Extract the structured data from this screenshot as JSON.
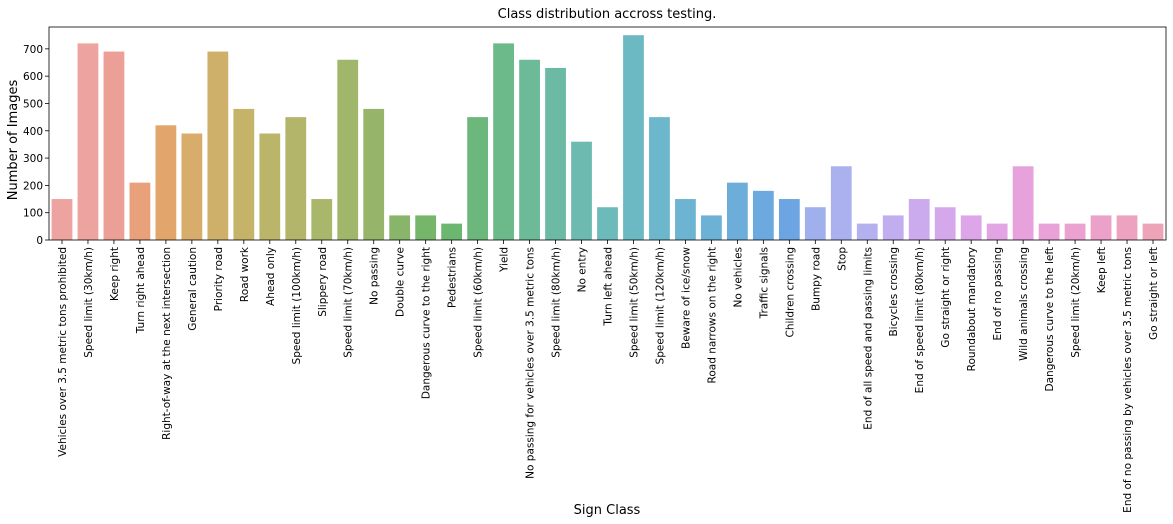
{
  "chart_data": {
    "type": "bar",
    "title": "Class distribution accross testing.",
    "xlabel": "Sign Class",
    "ylabel": "Number of Images",
    "ylim": [
      0,
      780
    ],
    "yticks": [
      0,
      100,
      200,
      300,
      400,
      500,
      600,
      700
    ],
    "grid": false,
    "categories": [
      "Vehicles over 3.5 metric tons prohibited",
      "Speed limit (30km/h)",
      "Keep right",
      "Turn right ahead",
      "Right-of-way at the next intersection",
      "General caution",
      "Priority road",
      "Road work",
      "Ahead only",
      "Speed limit (100km/h)",
      "Slippery road",
      "Speed limit (70km/h)",
      "No passing",
      "Double curve",
      "Dangerous curve to the right",
      "Pedestrians",
      "Speed limit (60km/h)",
      "Yield",
      "No passing for vehicles over 3.5 metric tons",
      "Speed limit (80km/h)",
      "No entry",
      "Turn left ahead",
      "Speed limit (50km/h)",
      "Speed limit (120km/h)",
      "Beware of ice/snow",
      "Road narrows on the right",
      "No vehicles",
      "Traffic signals",
      "Children crossing",
      "Bumpy road",
      "Stop",
      "End of all speed and passing limits",
      "Bicycles crossing",
      "End of speed limit (80km/h)",
      "Go straight or right",
      "Roundabout mandatory",
      "End of no passing",
      "Wild animals crossing",
      "Dangerous curve to the left",
      "Speed limit (20km/h)",
      "Keep left",
      "End of no passing by vehicles over 3.5 metric tons",
      "Go straight or left"
    ],
    "values": [
      150,
      720,
      690,
      210,
      420,
      390,
      690,
      480,
      390,
      450,
      150,
      660,
      480,
      90,
      90,
      60,
      450,
      720,
      660,
      630,
      360,
      120,
      750,
      450,
      150,
      90,
      210,
      180,
      150,
      120,
      270,
      60,
      90,
      150,
      120,
      90,
      60,
      270,
      60,
      60,
      90,
      90,
      60
    ],
    "colors": [
      "#eda3a0",
      "#eda39f",
      "#ec9f96",
      "#e9a17c",
      "#e2a56b",
      "#d8ad6b",
      "#cfb06a",
      "#c6b36a",
      "#bbb56a",
      "#b2b56a",
      "#a8b76a",
      "#a0b66a",
      "#96b56a",
      "#88b56a",
      "#76b66a",
      "#6cb76f",
      "#6cb87c",
      "#6cb98a",
      "#6cba98",
      "#6cbaa4",
      "#6cbab0",
      "#6cbab9",
      "#6cb9c3",
      "#6cb7cb",
      "#6cb4d1",
      "#6cb1d6",
      "#6cadda",
      "#6ca9de",
      "#6ca5e1",
      "#9fb0ec",
      "#aab1ee",
      "#b5b0ee",
      "#c0aeee",
      "#cbabee",
      "#d5a8ec",
      "#dda6e9",
      "#e3a4e4",
      "#e7a2de",
      "#e9a2d7",
      "#eba2d0",
      "#eca2c8",
      "#eda3c0",
      "#eda3b8"
    ]
  }
}
